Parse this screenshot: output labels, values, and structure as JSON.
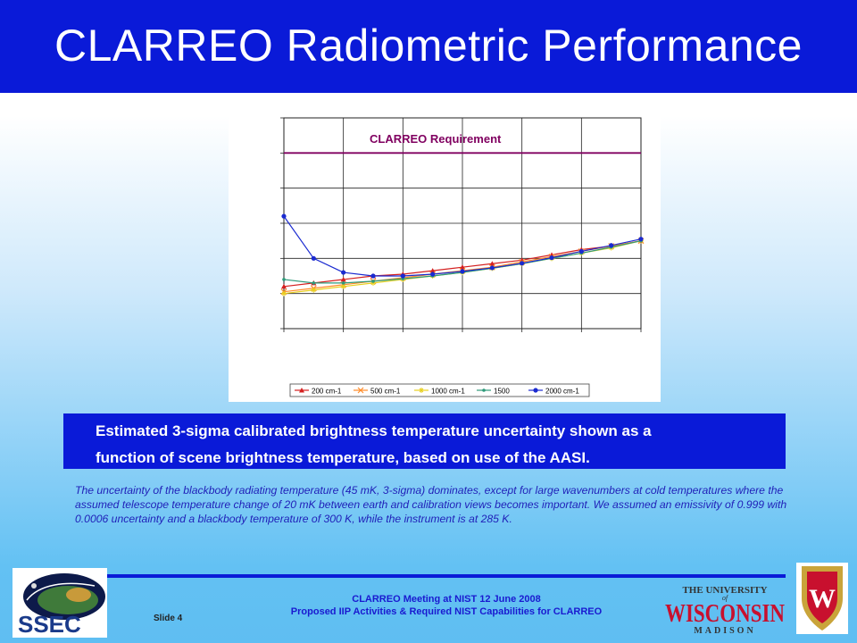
{
  "slide": {
    "title": "CLARREO Radiometric Performance",
    "caption_line1": "Estimated 3-sigma calibrated brightness temperature uncertainty shown as a",
    "caption_line2": "function of scene brightness temperature, based on use of the AASI.",
    "note": "The uncertainty of the blackbody radiating temperature (45 mK, 3-sigma) dominates, except for large wavenumbers at cold temperatures where the assumed telescope temperature change of 20 mK between earth and calibration views becomes important. We assumed an emissivity of 0.999 with 0.0006 uncertainty and a blackbody temperature of 300 K, while the instrument is at 285 K.",
    "footer_line1": "CLARREO Meeting at NIST 12 June 2008",
    "footer_line2": "Proposed IIP Activities & Required NIST Capabilities for CLARREO",
    "slide_number": "Slide 4"
  },
  "logos": {
    "ssec": "SSEC",
    "uw_the_university": "THE UNIVERSITY",
    "uw_of": "of",
    "uw_wisconsin": "WISCONSIN",
    "uw_madison": "MADISON",
    "uw_crest_letter": "W"
  },
  "colors": {
    "title_bar": "#0a1ad8",
    "requirement_line": "#800060",
    "series_200": "#d42020",
    "series_500": "#ff8c2a",
    "series_1000": "#e8d020",
    "series_1500": "#2e9a7a",
    "series_2000": "#1a2ad0"
  },
  "chart_data": {
    "type": "line",
    "title": "",
    "xlabel": "",
    "ylabel": "",
    "annotation": "CLARREO Requirement",
    "requirement_y": 5.0,
    "xlim": [
      0,
      6
    ],
    "ylim": [
      0,
      6
    ],
    "grid": true,
    "legend_position": "bottom",
    "series": [
      {
        "name": "200 cm-1",
        "marker": "triangle",
        "x": [
          0,
          0.5,
          1,
          1.5,
          2,
          2.5,
          3,
          3.5,
          4,
          4.5,
          5,
          5.5,
          6
        ],
        "y": [
          1.2,
          1.3,
          1.4,
          1.5,
          1.55,
          1.65,
          1.75,
          1.85,
          1.95,
          2.1,
          2.25,
          2.35,
          2.5
        ]
      },
      {
        "name": "500 cm-1",
        "marker": "x",
        "x": [
          0,
          0.5,
          1,
          1.5,
          2,
          2.5,
          3,
          3.5,
          4,
          4.5,
          5,
          5.5,
          6
        ],
        "y": [
          1.05,
          1.15,
          1.25,
          1.35,
          1.45,
          1.55,
          1.65,
          1.75,
          1.9,
          2.05,
          2.2,
          2.35,
          2.5
        ]
      },
      {
        "name": "1000 cm-1",
        "marker": "star",
        "x": [
          0,
          0.5,
          1,
          1.5,
          2,
          2.5,
          3,
          3.5,
          4,
          4.5,
          5,
          5.5,
          6
        ],
        "y": [
          1.0,
          1.1,
          1.2,
          1.3,
          1.4,
          1.5,
          1.6,
          1.72,
          1.85,
          2.0,
          2.15,
          2.3,
          2.5
        ]
      },
      {
        "name": "1500",
        "marker": "dot",
        "x": [
          0,
          0.5,
          1,
          1.5,
          2,
          2.5,
          3,
          3.5,
          4,
          4.5,
          5,
          5.5,
          6
        ],
        "y": [
          1.4,
          1.3,
          1.3,
          1.35,
          1.42,
          1.5,
          1.6,
          1.72,
          1.85,
          2.0,
          2.15,
          2.32,
          2.5
        ]
      },
      {
        "name": "2000 cm-1",
        "marker": "circle",
        "x": [
          0,
          0.5,
          1,
          1.5,
          2,
          2.5,
          3,
          3.5,
          4,
          4.5,
          5,
          5.5,
          6
        ],
        "y": [
          3.2,
          2.0,
          1.6,
          1.5,
          1.5,
          1.55,
          1.63,
          1.73,
          1.86,
          2.02,
          2.2,
          2.37,
          2.55
        ]
      }
    ]
  }
}
